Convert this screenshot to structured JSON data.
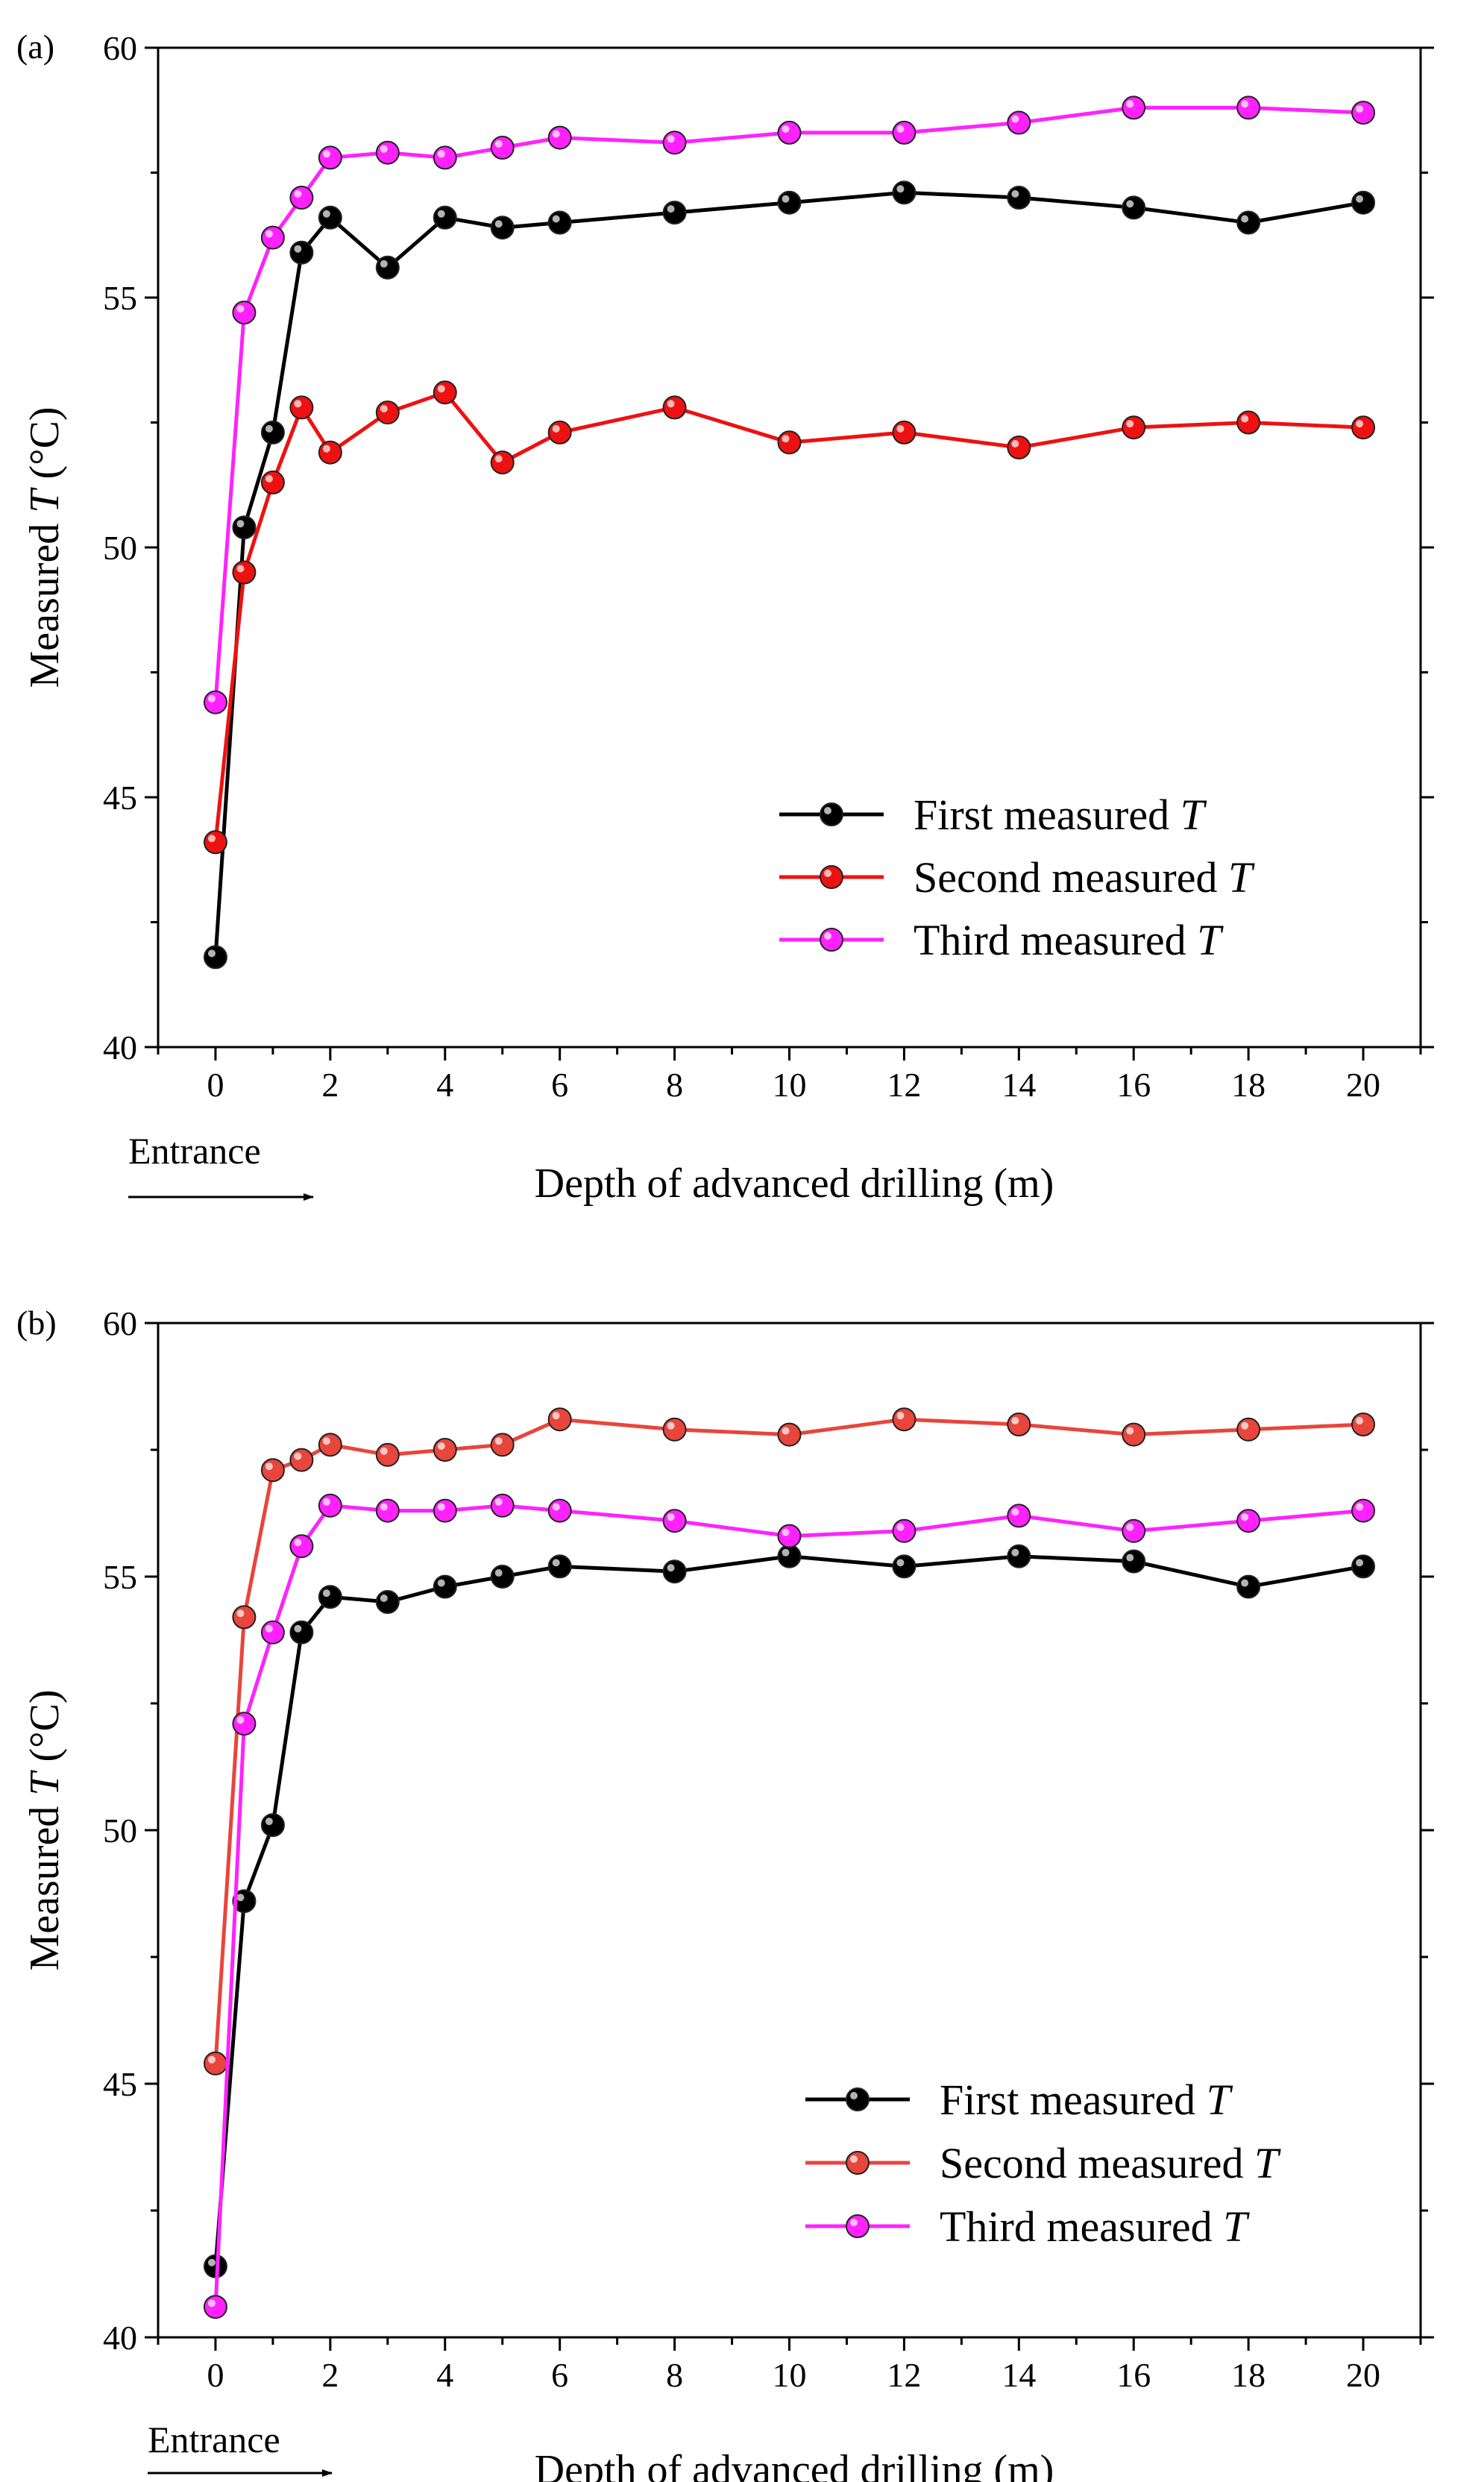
{
  "chart_data": [
    {
      "type": "line",
      "panel_label": "(a)",
      "xlabel": "Depth of advanced drilling (m)",
      "ylabel_prefix": "Measured ",
      "ylabel_var": "T",
      "ylabel_suffix": " (°C)",
      "annotation": "Entrance",
      "xlim": [
        -1,
        21
      ],
      "ylim": [
        40,
        60
      ],
      "xticks": [
        0,
        2,
        4,
        6,
        8,
        10,
        12,
        14,
        16,
        18,
        20
      ],
      "yticks": [
        40,
        45,
        50,
        55,
        60
      ],
      "grid": false,
      "legend_position": "bottom-right",
      "x": [
        0,
        0.5,
        1,
        1.5,
        2,
        3,
        4,
        5,
        6,
        8,
        10,
        12,
        14,
        16,
        18,
        20
      ],
      "series": [
        {
          "name_prefix": "First measured ",
          "name_var": "T",
          "color": "#000000",
          "marker_color": "#000000",
          "values": [
            41.8,
            50.4,
            52.3,
            55.9,
            56.6,
            55.6,
            56.6,
            56.4,
            56.5,
            56.7,
            56.9,
            57.1,
            57.0,
            56.8,
            56.5,
            56.9
          ]
        },
        {
          "name_prefix": "Second measured ",
          "name_var": "T",
          "color": "#ee1111",
          "marker_color": "#ee1111",
          "values": [
            44.1,
            49.5,
            51.3,
            52.8,
            51.9,
            52.7,
            53.1,
            51.7,
            52.3,
            52.8,
            52.1,
            52.3,
            52.0,
            52.4,
            52.5,
            52.4
          ]
        },
        {
          "name_prefix": "Third measured ",
          "name_var": "T",
          "color": "#ff22ff",
          "marker_color": "#ff22ff",
          "values": [
            46.9,
            54.7,
            56.2,
            57.0,
            57.8,
            57.9,
            57.8,
            58.0,
            58.2,
            58.1,
            58.3,
            58.3,
            58.5,
            58.8,
            58.8,
            58.7
          ]
        }
      ]
    },
    {
      "type": "line",
      "panel_label": "(b)",
      "xlabel": "Depth of advanced drilling (m)",
      "ylabel_prefix": "Measured ",
      "ylabel_var": "T",
      "ylabel_suffix": " (°C)",
      "annotation": "Entrance",
      "xlim": [
        -1,
        21
      ],
      "ylim": [
        40,
        60
      ],
      "xticks": [
        0,
        2,
        4,
        6,
        8,
        10,
        12,
        14,
        16,
        18,
        20
      ],
      "yticks": [
        40,
        45,
        50,
        55,
        60
      ],
      "grid": false,
      "legend_position": "bottom-right",
      "x": [
        0,
        0.5,
        1,
        1.5,
        2,
        3,
        4,
        5,
        6,
        8,
        10,
        12,
        14,
        16,
        18,
        20
      ],
      "series": [
        {
          "name_prefix": "First measured ",
          "name_var": "T",
          "color": "#000000",
          "marker_color": "#000000",
          "values": [
            41.4,
            48.6,
            50.1,
            53.9,
            54.6,
            54.5,
            54.8,
            55.0,
            55.2,
            55.1,
            55.4,
            55.2,
            55.4,
            55.3,
            54.8,
            55.2
          ]
        },
        {
          "name_prefix": "Second measured ",
          "name_var": "T",
          "color": "#e8453c",
          "marker_color": "#e8453c",
          "values": [
            45.4,
            54.2,
            57.1,
            57.3,
            57.6,
            57.4,
            57.5,
            57.6,
            58.1,
            57.9,
            57.8,
            58.1,
            58.0,
            57.8,
            57.9,
            58.0
          ]
        },
        {
          "name_prefix": "Third measured ",
          "name_var": "T",
          "color": "#ff22ff",
          "marker_color": "#ff22ff",
          "values": [
            40.6,
            52.1,
            53.9,
            55.6,
            56.4,
            56.3,
            56.3,
            56.4,
            56.3,
            56.1,
            55.8,
            55.9,
            56.2,
            55.9,
            56.1,
            56.3
          ]
        }
      ]
    }
  ]
}
